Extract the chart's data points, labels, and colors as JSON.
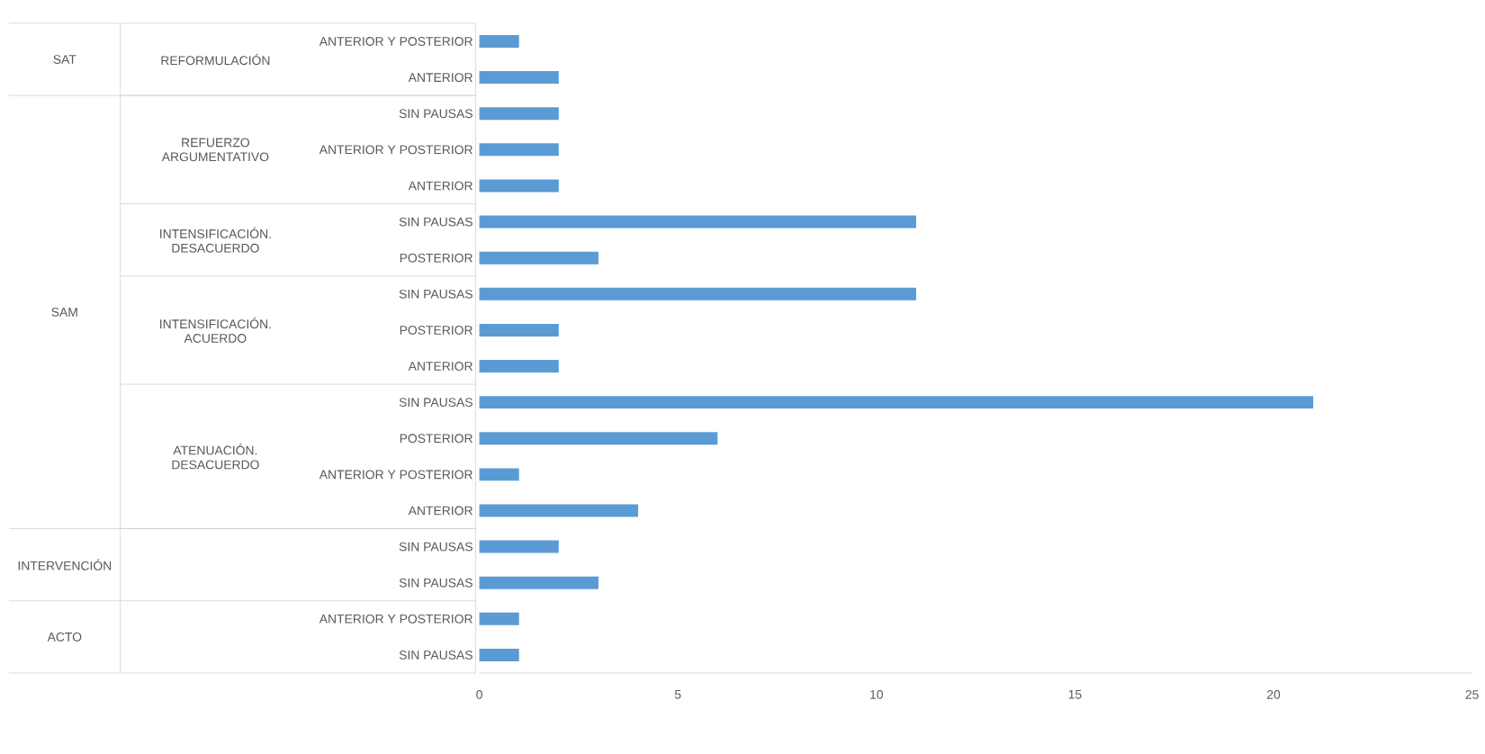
{
  "chart_data": {
    "type": "bar",
    "orientation": "horizontal",
    "color": "#5b9bd5",
    "categories": [
      "ANTERIOR Y POSTERIOR",
      "ANTERIOR",
      "SIN PAUSAS",
      "ANTERIOR Y POSTERIOR",
      "ANTERIOR",
      "SIN PAUSAS",
      "POSTERIOR",
      "SIN PAUSAS",
      "POSTERIOR",
      "ANTERIOR",
      "SIN PAUSAS",
      "POSTERIOR",
      "ANTERIOR Y POSTERIOR",
      "ANTERIOR",
      "SIN PAUSAS",
      "SIN PAUSAS",
      "ANTERIOR Y POSTERIOR",
      "SIN PAUSAS"
    ],
    "values": [
      1,
      2,
      2,
      2,
      2,
      11,
      3,
      11,
      2,
      2,
      21,
      6,
      1,
      4,
      2,
      3,
      1,
      1
    ],
    "xlim": [
      0,
      25
    ],
    "xticks": [
      0,
      5,
      10,
      15,
      20,
      25
    ],
    "annotations": [
      "SAT",
      "SAM",
      "INTERVENCIÓN",
      "ACTO",
      "REFORMULACIÓN",
      "REFUERZO ARGUMENTATIVO",
      "INTENSIFICACIÓN. DESACUERDO",
      "INTENSIFICACIÓN. ACUERDO",
      "ATENUACIÓN. DESACUERDO"
    ]
  }
}
